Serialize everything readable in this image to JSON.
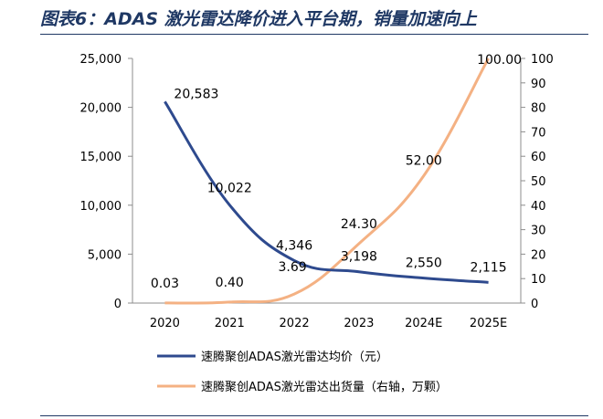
{
  "figure": {
    "title": "图表6：ADAS 激光雷达降价进入平台期，销量加速向上"
  },
  "chart_data": {
    "type": "line",
    "categories": [
      "2020",
      "2021",
      "2022",
      "2023",
      "2024E",
      "2025E"
    ],
    "left_axis": {
      "ylim": [
        0,
        25000
      ],
      "ticks": [
        "0",
        "5,000",
        "10,000",
        "15,000",
        "20,000",
        "25,000"
      ]
    },
    "right_axis": {
      "ylim": [
        0,
        100
      ],
      "ticks": [
        "0",
        "10",
        "20",
        "30",
        "40",
        "50",
        "60",
        "70",
        "80",
        "90",
        "100"
      ]
    },
    "grid": false,
    "legend_position": "bottom",
    "series": [
      {
        "name": "速腾聚创ADAS激光雷达均价（元）",
        "axis": "left",
        "color": "#2e4a8e",
        "values": [
          20583,
          10022,
          4346,
          3198,
          2550,
          2115
        ],
        "labels": [
          "20,583",
          "10,022",
          "4,346",
          "3,198",
          "2,550",
          "2,115"
        ]
      },
      {
        "name": "速腾聚创ADAS激光雷达出货量（右轴，万颗）",
        "axis": "right",
        "color": "#f4b183",
        "values": [
          0.03,
          0.4,
          3.69,
          24.3,
          52.0,
          100.0
        ],
        "labels": [
          "0.03",
          "0.40",
          "3.69",
          "24.30",
          "52.00",
          "100.00"
        ]
      }
    ]
  }
}
